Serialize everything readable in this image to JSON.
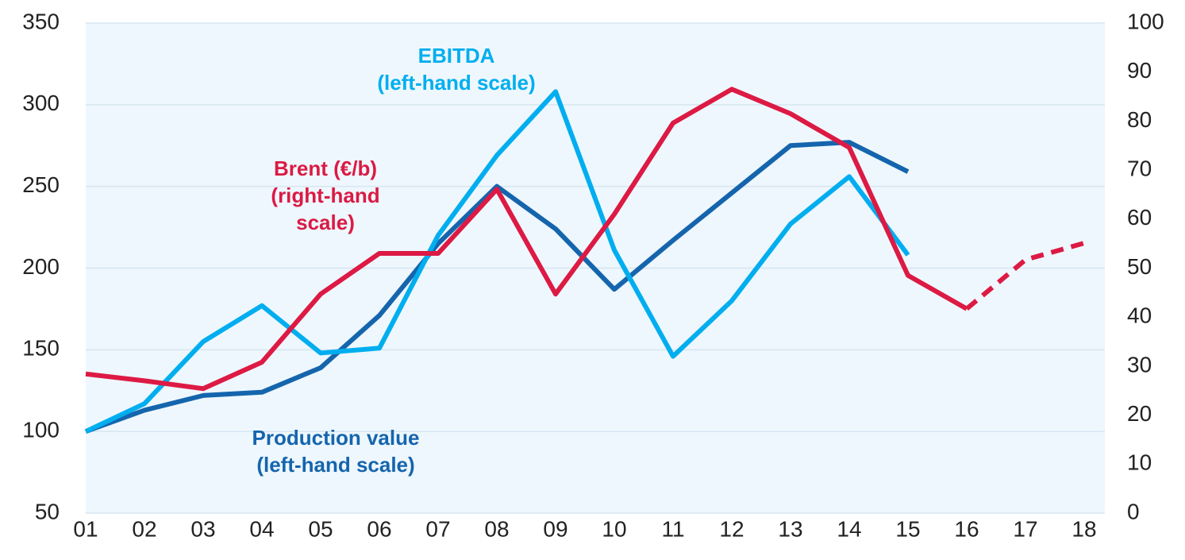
{
  "chart_data": {
    "type": "line",
    "categories": [
      "01",
      "02",
      "03",
      "04",
      "05",
      "06",
      "07",
      "08",
      "09",
      "10",
      "11",
      "12",
      "13",
      "14",
      "15",
      "16",
      "17",
      "18"
    ],
    "series": [
      {
        "color": "#1565ad",
        "axis": "y",
        "values": [
          100,
          113,
          122,
          124,
          139,
          171,
          215,
          250,
          224,
          187,
          217,
          246,
          275,
          277,
          259,
          null,
          null,
          null
        ]
      },
      {
        "color": "#00aeef",
        "axis": "y",
        "values": [
          100,
          117,
          155,
          177,
          148,
          151,
          220,
          269,
          308,
          211,
          146,
          180,
          227,
          256,
          208,
          null,
          null,
          null
        ]
      },
      {
        "color": "#dc1a44",
        "axis": "y2",
        "values": [
          28.4,
          27,
          25.4,
          30.8,
          44.7,
          53,
          53,
          66.1,
          44.7,
          61,
          79.6,
          86.5,
          81.5,
          74.6,
          48.5,
          41.7,
          null,
          null
        ]
      },
      {
        "color": "#dc1a44",
        "axis": "y2",
        "dashed": true,
        "values": [
          null,
          null,
          null,
          null,
          null,
          null,
          null,
          null,
          null,
          null,
          null,
          null,
          null,
          null,
          null,
          41.7,
          51.7,
          55.1
        ]
      }
    ],
    "annotations": [
      {
        "lines": [
          "EBITDA",
          "(left-hand scale)"
        ],
        "color": "#00aeef"
      },
      {
        "lines": [
          "Brent (€/b)",
          "(right-hand",
          "scale)"
        ],
        "color": "#dc1a44"
      },
      {
        "lines": [
          "Production value",
          "(left-hand scale)"
        ],
        "color": "#1565ad"
      }
    ],
    "ylim": [
      50,
      350
    ],
    "yticks": [
      50,
      100,
      150,
      200,
      250,
      300,
      350
    ],
    "y2lim": [
      0,
      100
    ],
    "y2ticks": [
      0,
      10,
      20,
      30,
      40,
      50,
      60,
      70,
      80,
      90,
      100
    ],
    "grid": true
  }
}
